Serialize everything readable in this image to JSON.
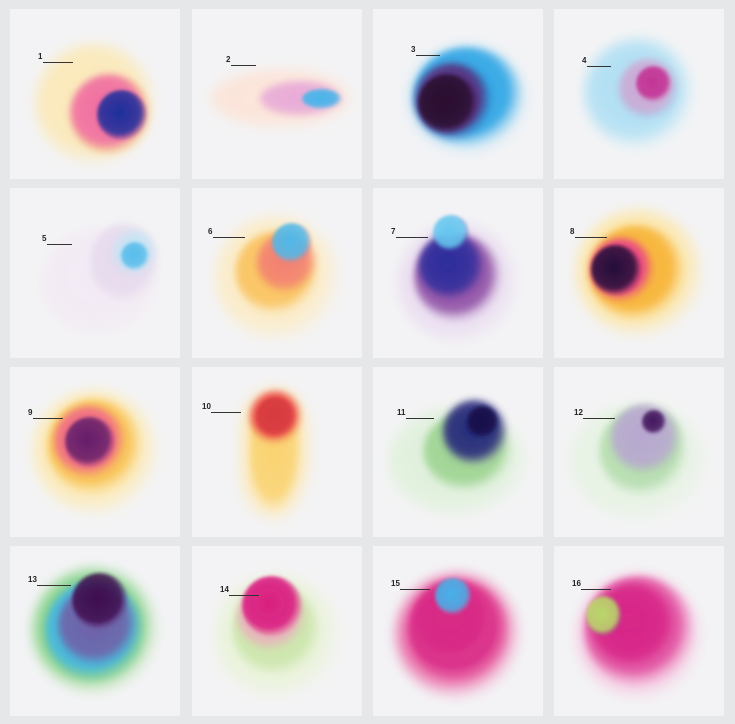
{
  "tiles": [
    {
      "label": "1",
      "palette": [
        "#fce8b0",
        "#f8cf2a",
        "#f06aa0",
        "#8a2a88",
        "#1f2e9b"
      ]
    },
    {
      "label": "2",
      "palette": [
        "#fde3d5",
        "#f5c3cf",
        "#e6a4d8",
        "#8ec7ef",
        "#46b4ea"
      ]
    },
    {
      "label": "3",
      "palette": [
        "#b9e2f6",
        "#2aa3e4",
        "#1b7fd3",
        "#5a2a78",
        "#2a0b2e"
      ]
    },
    {
      "label": "4",
      "palette": [
        "#e4f4fb",
        "#aadef3",
        "#6cc7ee",
        "#d990c6",
        "#c2268d"
      ]
    },
    {
      "label": "5",
      "palette": [
        "#f2eaf4",
        "#e1d3ea",
        "#bfe6f6",
        "#72cbef",
        "#3db3ea"
      ]
    },
    {
      "label": "6",
      "palette": [
        "#fdebc0",
        "#f9bb4a",
        "#f0647a",
        "#4fb8e9",
        "#58c0ee"
      ]
    },
    {
      "label": "7",
      "palette": [
        "#eadcf0",
        "#8d4ca3",
        "#3d2294",
        "#2c2d9c",
        "#66c6ef"
      ]
    },
    {
      "label": "8",
      "palette": [
        "#fde6a6",
        "#f7b233",
        "#e83f8b",
        "#6a1a55",
        "#24093a"
      ]
    },
    {
      "label": "9",
      "palette": [
        "#fde9b0",
        "#f8bd43",
        "#ef5f8e",
        "#b7368a",
        "#651e6b"
      ]
    },
    {
      "label": "10",
      "palette": [
        "#fde9b8",
        "#f9cd5e",
        "#f7a94a",
        "#ea4a4a",
        "#d73a3f"
      ]
    },
    {
      "label": "11",
      "palette": [
        "#dff0da",
        "#7fc76f",
        "#6a4aa0",
        "#23267a",
        "#140d4a"
      ]
    },
    {
      "label": "12",
      "palette": [
        "#e6f2e2",
        "#a7d79f",
        "#b8a1d4",
        "#7e4aa2",
        "#44155e"
      ]
    },
    {
      "label": "13",
      "palette": [
        "#d6ecbc",
        "#7ccf7e",
        "#42b6e6",
        "#7b4a9a",
        "#3e0e4e"
      ]
    },
    {
      "label": "14",
      "palette": [
        "#e9f3d7",
        "#c3e29e",
        "#f1a3c2",
        "#e6458e",
        "#d91b7f"
      ]
    },
    {
      "label": "15",
      "palette": [
        "#f8cfe3",
        "#e95ea0",
        "#d82a86",
        "#63bdec",
        "#45b2ea"
      ]
    },
    {
      "label": "16",
      "palette": [
        "#f6c2de",
        "#e14d9e",
        "#d72587",
        "#7a2a84",
        "#b9d96a"
      ]
    }
  ]
}
